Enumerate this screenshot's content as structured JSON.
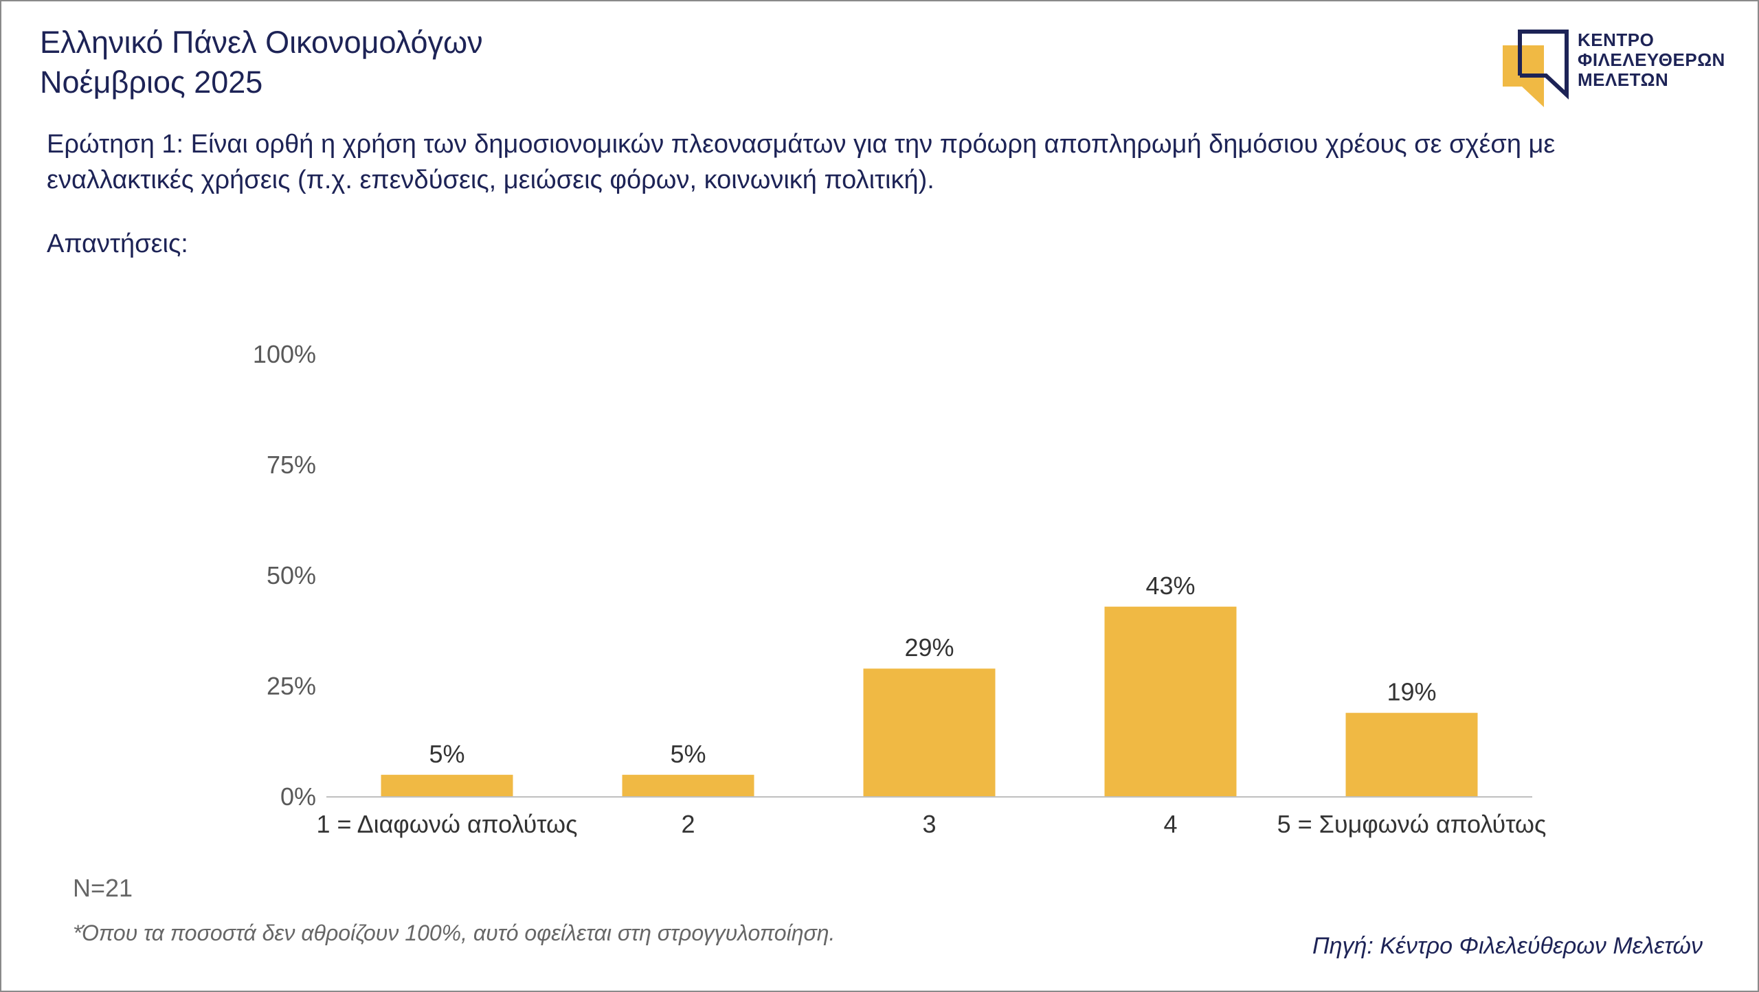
{
  "header": {
    "title_line1": "Ελληνικό Πάνελ Οικονομολόγων",
    "title_line2": "Νοέμβριος 2025"
  },
  "logo": {
    "line1": "ΚΕΝΤΡΟ",
    "line2": "ΦΙΛΕΛΕΥΘΕΡΩΝ",
    "line3": "ΜΕΛΕΤΩΝ",
    "accent_color": "#f0b944",
    "ink_color": "#1d2356"
  },
  "question": "Ερώτηση 1: Είναι ορθή η χρήση των δημοσιονομικών πλεονασμάτων για την πρόωρη αποπληρωμή δημόσιου χρέους σε σχέση με εναλλακτικές χρήσεις (π.χ. επενδύσεις, μειώσεις φόρων, κοινωνική πολιτική).",
  "answers_label": "Απαντήσεις:",
  "chart_data": {
    "type": "bar",
    "categories": [
      "1 = Διαφωνώ απολύτως",
      "2",
      "3",
      "4",
      "5 = Συμφωνώ απολύτως"
    ],
    "values": [
      5,
      5,
      29,
      43,
      19
    ],
    "data_labels": [
      "5%",
      "5%",
      "29%",
      "43%",
      "19%"
    ],
    "ylim": [
      0,
      100
    ],
    "yticks": [
      0,
      25,
      50,
      75,
      100
    ],
    "ytick_labels": [
      "0%",
      "25%",
      "50%",
      "75%",
      "100%"
    ],
    "title": "",
    "xlabel": "",
    "ylabel": "",
    "grid": false,
    "bar_color": "#f0b944"
  },
  "footer": {
    "n": "N=21",
    "note": "*Όπου τα ποσοστά δεν αθροίζουν 100%, αυτό οφείλεται στη στρογγυλοποίηση.",
    "source": "Πηγή: Κέντρο Φιλελεύθερων Μελετών"
  }
}
